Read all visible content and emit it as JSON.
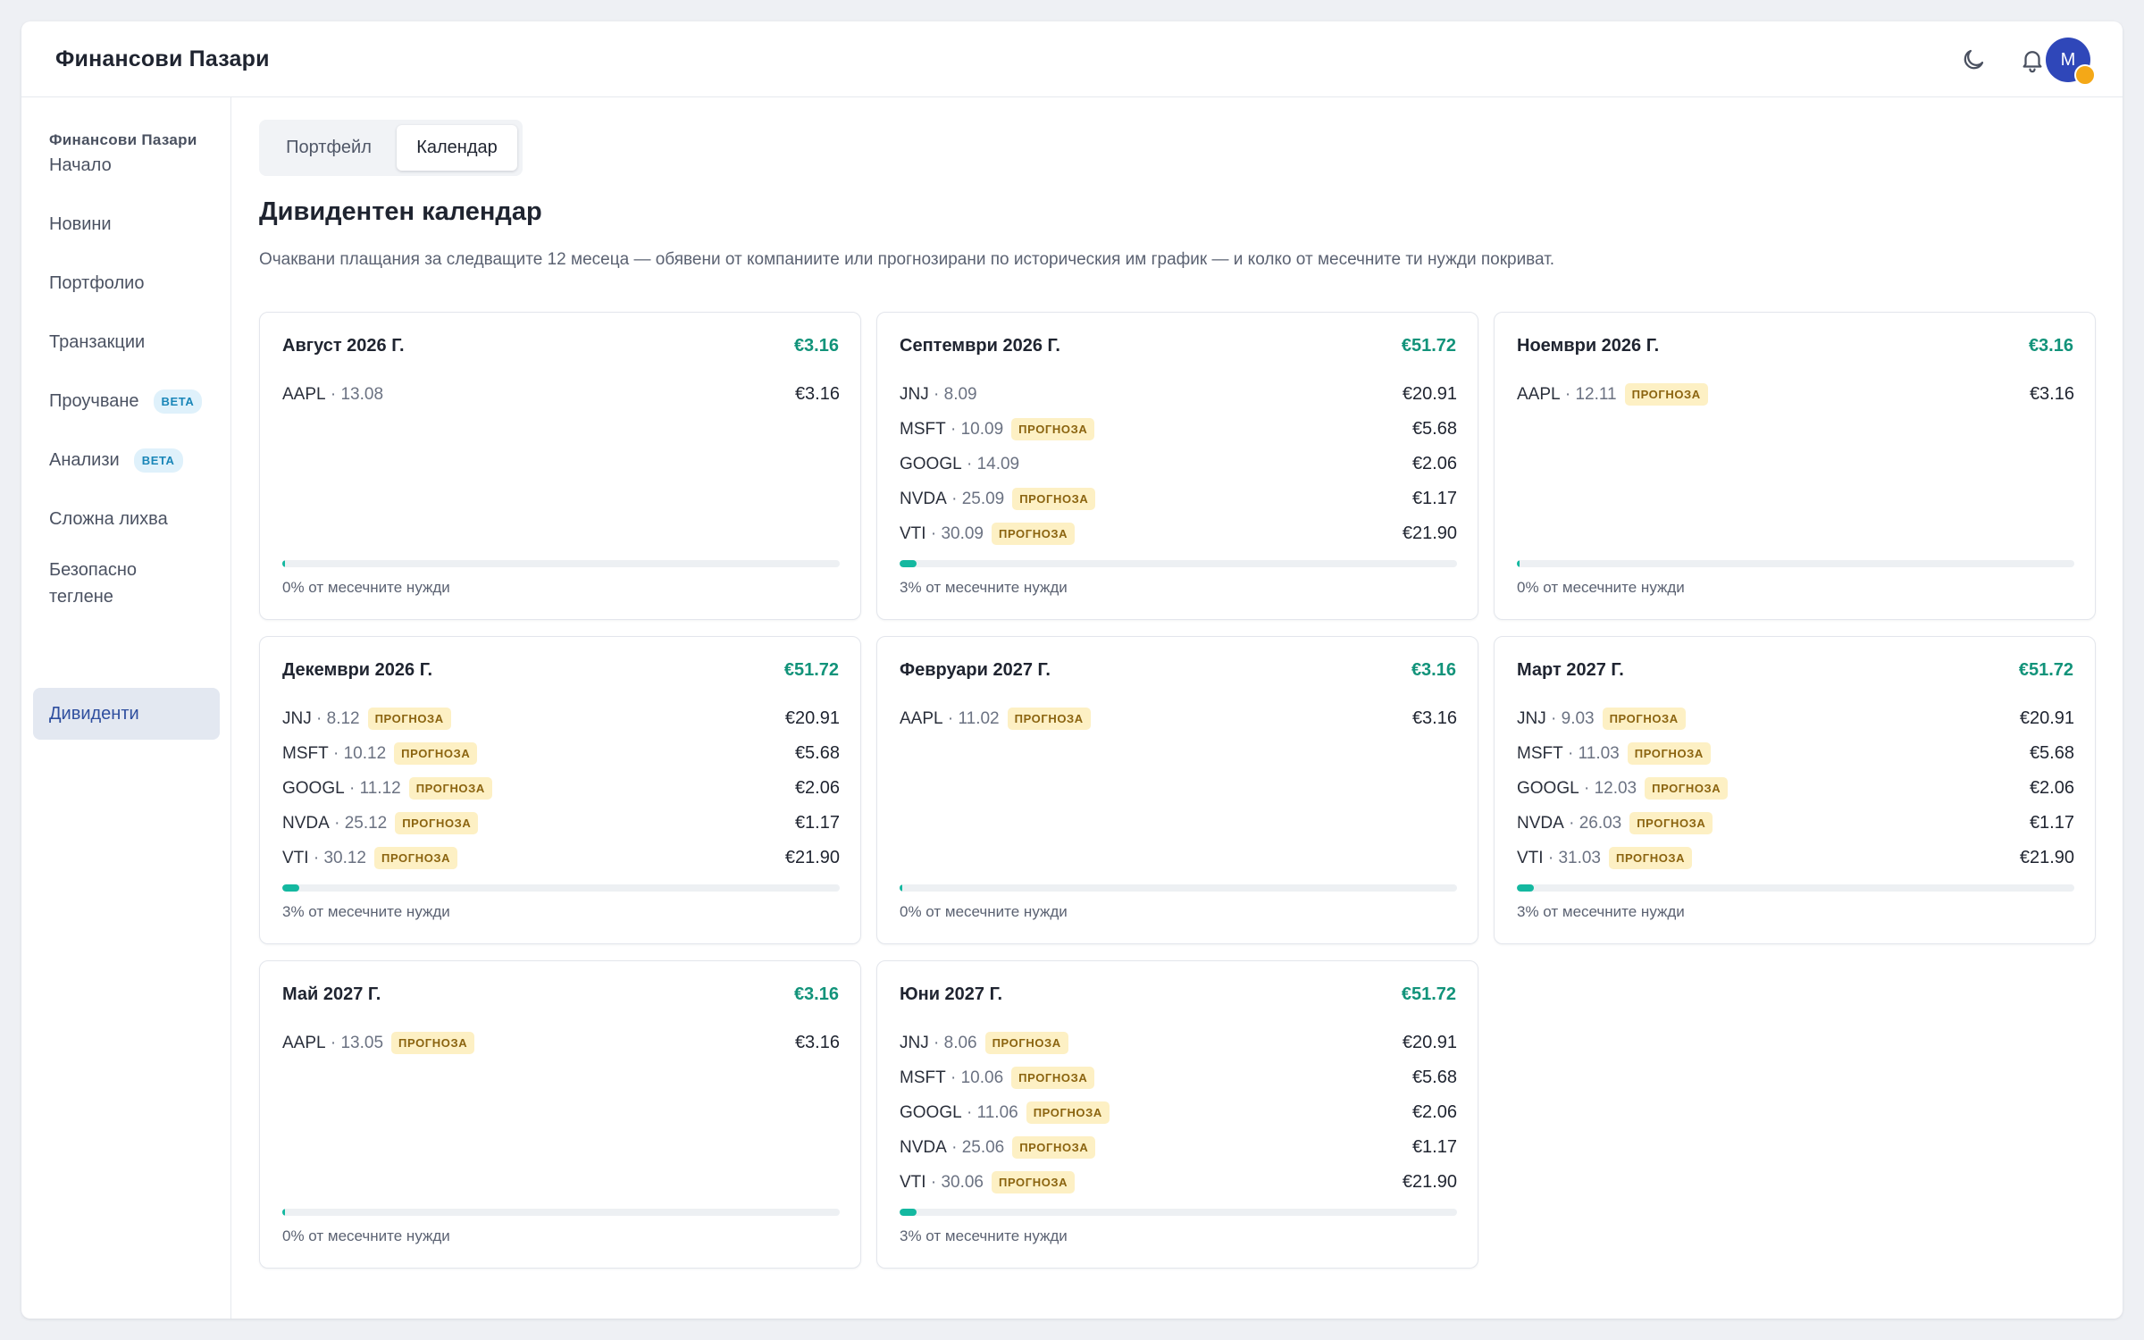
{
  "header": {
    "title": "Финансови Пазари",
    "icons": {
      "theme": "moon-icon",
      "notifications": "bell-icon"
    },
    "avatar_initial": "M"
  },
  "sidebar": {
    "section_title": "Финансови Пазари",
    "items": [
      {
        "label": "Начало",
        "badge": ""
      },
      {
        "label": "Новини",
        "badge": ""
      },
      {
        "label": "Портфолио",
        "badge": ""
      },
      {
        "label": "Транзакции",
        "badge": ""
      },
      {
        "label": "Проучване",
        "badge": "BETA"
      },
      {
        "label": "Анализи",
        "badge": "BETA"
      },
      {
        "label": "Сложна лихва",
        "badge": ""
      },
      {
        "label": "Безопасно теглене",
        "badge": ""
      },
      {
        "label": "Дивиденти",
        "badge": "",
        "active": true
      }
    ]
  },
  "tabs": [
    {
      "label": "Портфейл",
      "active": false
    },
    {
      "label": "Календар",
      "active": true
    }
  ],
  "page": {
    "heading": "Дивидентен календар",
    "subtitle": "Очаквани плащания за следващите 12 месеца — обявени от компаниите или прогнозирани по историческия им график — и колко от месечните ти нужди покриват."
  },
  "forecast_label": "ПРОГНОЗА",
  "colors": {
    "accent": "#12937a",
    "bar": "#14b8a0",
    "active_nav": "#2f4f9f",
    "badge_bg": "#fdf0c4",
    "avatar": "#2f47b9"
  },
  "months": [
    {
      "month": "Август 2026 Г.",
      "total": "€3.16",
      "need_label": "0% от месечните нужди",
      "coverage": 0,
      "payments": [
        {
          "ticker": "AAPL",
          "date": "13.08",
          "forecast": false,
          "amount": "€3.16"
        }
      ]
    },
    {
      "month": "Септември 2026 Г.",
      "total": "€51.72",
      "need_label": "3% от месечните нужди",
      "coverage": 3,
      "payments": [
        {
          "ticker": "JNJ",
          "date": "8.09",
          "forecast": false,
          "amount": "€20.91"
        },
        {
          "ticker": "MSFT",
          "date": "10.09",
          "forecast": true,
          "amount": "€5.68"
        },
        {
          "ticker": "GOOGL",
          "date": "14.09",
          "forecast": false,
          "amount": "€2.06"
        },
        {
          "ticker": "NVDA",
          "date": "25.09",
          "forecast": true,
          "amount": "€1.17"
        },
        {
          "ticker": "VTI",
          "date": "30.09",
          "forecast": true,
          "amount": "€21.90"
        }
      ]
    },
    {
      "month": "Ноември 2026 Г.",
      "total": "€3.16",
      "need_label": "0% от месечните нужди",
      "coverage": 0,
      "payments": [
        {
          "ticker": "AAPL",
          "date": "12.11",
          "forecast": true,
          "amount": "€3.16"
        }
      ]
    },
    {
      "month": "Декември 2026 Г.",
      "total": "€51.72",
      "need_label": "3% от месечните нужди",
      "coverage": 3,
      "payments": [
        {
          "ticker": "JNJ",
          "date": "8.12",
          "forecast": true,
          "amount": "€20.91"
        },
        {
          "ticker": "MSFT",
          "date": "10.12",
          "forecast": true,
          "amount": "€5.68"
        },
        {
          "ticker": "GOOGL",
          "date": "11.12",
          "forecast": true,
          "amount": "€2.06"
        },
        {
          "ticker": "NVDA",
          "date": "25.12",
          "forecast": true,
          "amount": "€1.17"
        },
        {
          "ticker": "VTI",
          "date": "30.12",
          "forecast": true,
          "amount": "€21.90"
        }
      ]
    },
    {
      "month": "Февруари 2027 Г.",
      "total": "€3.16",
      "need_label": "0% от месечните нужди",
      "coverage": 0,
      "payments": [
        {
          "ticker": "AAPL",
          "date": "11.02",
          "forecast": true,
          "amount": "€3.16"
        }
      ]
    },
    {
      "month": "Март 2027 Г.",
      "total": "€51.72",
      "need_label": "3% от месечните нужди",
      "coverage": 3,
      "payments": [
        {
          "ticker": "JNJ",
          "date": "9.03",
          "forecast": true,
          "amount": "€20.91"
        },
        {
          "ticker": "MSFT",
          "date": "11.03",
          "forecast": true,
          "amount": "€5.68"
        },
        {
          "ticker": "GOOGL",
          "date": "12.03",
          "forecast": true,
          "amount": "€2.06"
        },
        {
          "ticker": "NVDA",
          "date": "26.03",
          "forecast": true,
          "amount": "€1.17"
        },
        {
          "ticker": "VTI",
          "date": "31.03",
          "forecast": true,
          "amount": "€21.90"
        }
      ]
    },
    {
      "month": "Май 2027 Г.",
      "total": "€3.16",
      "need_label": "0% от месечните нужди",
      "coverage": 0,
      "payments": [
        {
          "ticker": "AAPL",
          "date": "13.05",
          "forecast": true,
          "amount": "€3.16"
        }
      ]
    },
    {
      "month": "Юни 2027 Г.",
      "total": "€51.72",
      "need_label": "3% от месечните нужди",
      "coverage": 3,
      "payments": [
        {
          "ticker": "JNJ",
          "date": "8.06",
          "forecast": true,
          "amount": "€20.91"
        },
        {
          "ticker": "MSFT",
          "date": "10.06",
          "forecast": true,
          "amount": "€5.68"
        },
        {
          "ticker": "GOOGL",
          "date": "11.06",
          "forecast": true,
          "amount": "€2.06"
        },
        {
          "ticker": "NVDA",
          "date": "25.06",
          "forecast": true,
          "amount": "€1.17"
        },
        {
          "ticker": "VTI",
          "date": "30.06",
          "forecast": true,
          "amount": "€21.90"
        }
      ]
    }
  ]
}
